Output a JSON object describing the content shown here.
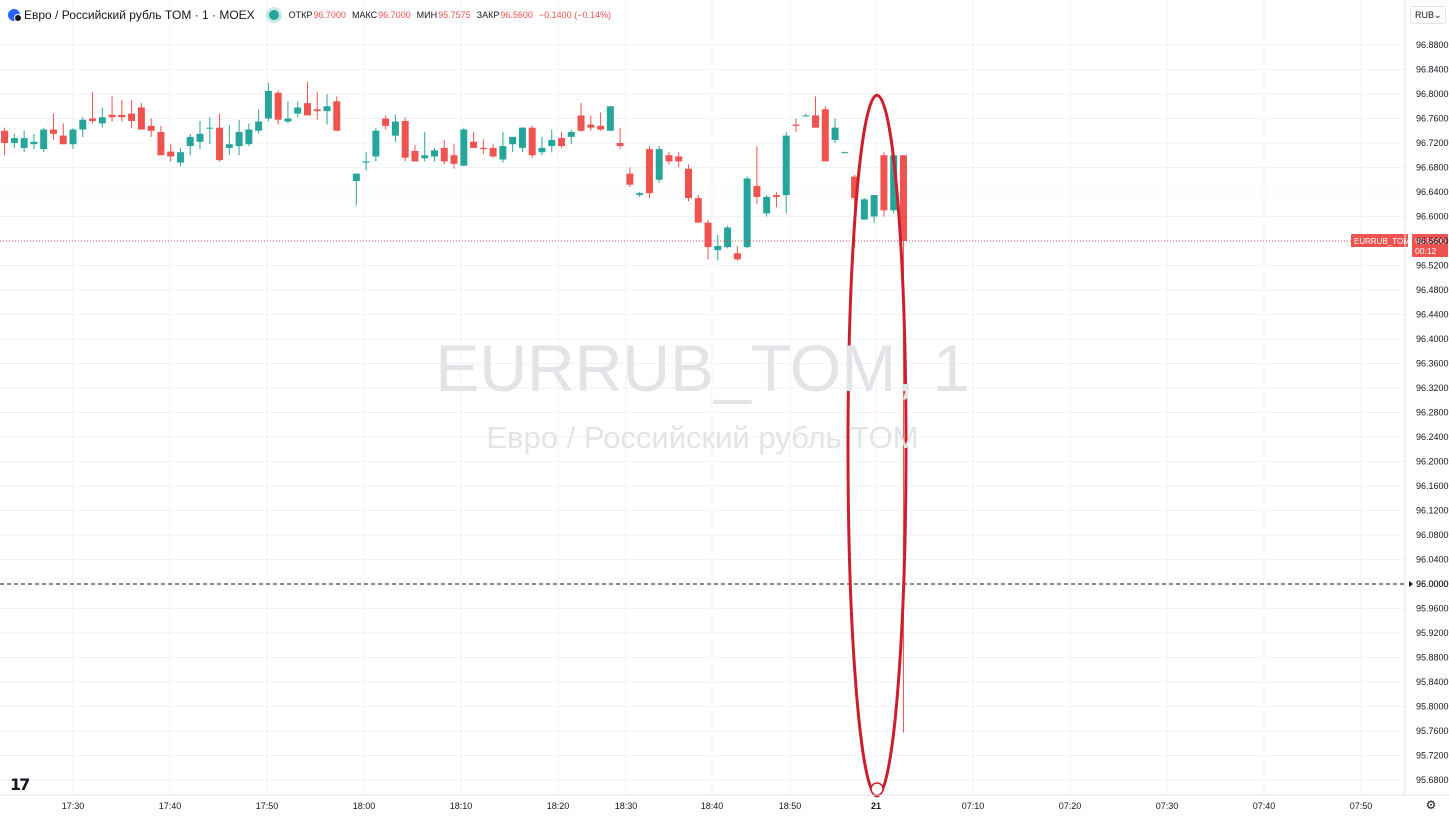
{
  "header": {
    "symbol_title": "Евро / Российский рубль TOM · 1 · MOEX",
    "ohlc": [
      {
        "label": "ОТКР",
        "value": "96.7000"
      },
      {
        "label": "МАКС",
        "value": "96.7000"
      },
      {
        "label": "МИН",
        "value": "95.7575"
      },
      {
        "label": "ЗАКР",
        "value": "96.5600"
      },
      {
        "label": "",
        "value": "−0.1400 (−0.14%)"
      }
    ],
    "currency": "RUB"
  },
  "watermark": {
    "line1": "EURRUB_TOM, 1",
    "line2": "Евро / Российский рубль TOM"
  },
  "colors": {
    "up": "#26a69a",
    "down": "#ef5350",
    "highlight": "#cc1f2d",
    "grid": "#f0f3fa",
    "axis_text": "#131722"
  },
  "price_label": {
    "symbol": "EURRUB_TOM",
    "price": "96.5600",
    "countdown": "00:12"
  },
  "hline": {
    "price": "96.0000",
    "value": 96.0
  },
  "icons": {
    "logo": "tradingview-logo",
    "settings": "gear-icon",
    "symbol": "symbol-icon",
    "currency_dropdown": "chevron-down-icon"
  },
  "chart_data": {
    "type": "candlestick",
    "ylim": [
      95.66,
      96.9
    ],
    "y_ticks": [
      "96.8800",
      "96.8400",
      "96.8000",
      "96.7600",
      "96.7200",
      "96.6800",
      "96.6400",
      "96.6000",
      "96.5600",
      "96.5200",
      "96.4800",
      "96.4400",
      "96.4000",
      "96.3600",
      "96.3200",
      "96.2800",
      "96.2400",
      "96.2000",
      "96.1600",
      "96.1200",
      "96.0800",
      "96.0400",
      "96.0000",
      "95.9600",
      "95.9200",
      "95.8800",
      "95.8400",
      "95.8000",
      "95.7600",
      "95.7200",
      "95.6800"
    ],
    "x_ticks": [
      "17:30",
      "17:40",
      "17:50",
      "18:00",
      "18:10",
      "18:20",
      "18:30",
      "18:40",
      "18:50",
      "21",
      "07:10",
      "07:20",
      "07:30",
      "07:40",
      "07:50"
    ],
    "last_price": 96.56,
    "highlighted_candle": {
      "open": 96.7,
      "high": 96.7,
      "low": 95.7575,
      "close": 96.56
    },
    "candles": [
      {
        "t": "17:23",
        "o": 96.74,
        "h": 96.745,
        "l": 96.7,
        "c": 96.72
      },
      {
        "t": "17:24",
        "o": 96.72,
        "h": 96.735,
        "l": 96.712,
        "c": 96.728
      },
      {
        "t": "17:25",
        "o": 96.712,
        "h": 96.74,
        "l": 96.705,
        "c": 96.728
      },
      {
        "t": "17:26",
        "o": 96.718,
        "h": 96.735,
        "l": 96.71,
        "c": 96.722
      },
      {
        "t": "17:27",
        "o": 96.71,
        "h": 96.745,
        "l": 96.705,
        "c": 96.742
      },
      {
        "t": "17:28",
        "o": 96.742,
        "h": 96.768,
        "l": 96.725,
        "c": 96.735
      },
      {
        "t": "17:29",
        "o": 96.732,
        "h": 96.752,
        "l": 96.718,
        "c": 96.718
      },
      {
        "t": "17:30",
        "o": 96.718,
        "h": 96.745,
        "l": 96.71,
        "c": 96.742
      },
      {
        "t": "17:31",
        "o": 96.742,
        "h": 96.762,
        "l": 96.73,
        "c": 96.758
      },
      {
        "t": "17:32",
        "o": 96.76,
        "h": 96.803,
        "l": 96.752,
        "c": 96.756
      },
      {
        "t": "17:33",
        "o": 96.752,
        "h": 96.778,
        "l": 96.745,
        "c": 96.762
      },
      {
        "t": "17:34",
        "o": 96.766,
        "h": 96.796,
        "l": 96.755,
        "c": 96.762
      },
      {
        "t": "17:35",
        "o": 96.766,
        "h": 96.79,
        "l": 96.755,
        "c": 96.762
      },
      {
        "t": "17:36",
        "o": 96.768,
        "h": 96.79,
        "l": 96.744,
        "c": 96.756
      },
      {
        "t": "17:37",
        "o": 96.778,
        "h": 96.785,
        "l": 96.744,
        "c": 96.742
      },
      {
        "t": "17:38",
        "o": 96.748,
        "h": 96.76,
        "l": 96.73,
        "c": 96.74
      },
      {
        "t": "17:39",
        "o": 96.738,
        "h": 96.748,
        "l": 96.7,
        "c": 96.7
      },
      {
        "t": "17:40",
        "o": 96.706,
        "h": 96.718,
        "l": 96.69,
        "c": 96.698
      },
      {
        "t": "17:41",
        "o": 96.688,
        "h": 96.712,
        "l": 96.682,
        "c": 96.705
      },
      {
        "t": "17:42",
        "o": 96.715,
        "h": 96.735,
        "l": 96.7,
        "c": 96.73
      },
      {
        "t": "17:43",
        "o": 96.722,
        "h": 96.756,
        "l": 96.71,
        "c": 96.735
      },
      {
        "t": "17:44",
        "o": 96.745,
        "h": 96.762,
        "l": 96.718,
        "c": 96.745
      },
      {
        "t": "17:45",
        "o": 96.745,
        "h": 96.768,
        "l": 96.69,
        "c": 96.692
      },
      {
        "t": "17:46",
        "o": 96.712,
        "h": 96.75,
        "l": 96.7,
        "c": 96.718
      },
      {
        "t": "17:47",
        "o": 96.715,
        "h": 96.758,
        "l": 96.7,
        "c": 96.738
      },
      {
        "t": "17:48",
        "o": 96.718,
        "h": 96.752,
        "l": 96.715,
        "c": 96.742
      },
      {
        "t": "17:49",
        "o": 96.74,
        "h": 96.775,
        "l": 96.735,
        "c": 96.755
      },
      {
        "t": "17:50",
        "o": 96.76,
        "h": 96.818,
        "l": 96.755,
        "c": 96.805
      },
      {
        "t": "17:51",
        "o": 96.802,
        "h": 96.806,
        "l": 96.75,
        "c": 96.758
      },
      {
        "t": "17:52",
        "o": 96.755,
        "h": 96.788,
        "l": 96.752,
        "c": 96.76
      },
      {
        "t": "17:53",
        "o": 96.768,
        "h": 96.788,
        "l": 96.762,
        "c": 96.778
      },
      {
        "t": "17:54",
        "o": 96.785,
        "h": 96.82,
        "l": 96.765,
        "c": 96.765
      },
      {
        "t": "17:55",
        "o": 96.775,
        "h": 96.803,
        "l": 96.758,
        "c": 96.772
      },
      {
        "t": "17:56",
        "o": 96.772,
        "h": 96.8,
        "l": 96.75,
        "c": 96.78
      },
      {
        "t": "17:57",
        "o": 96.788,
        "h": 96.796,
        "l": 96.74,
        "c": 96.74
      },
      {
        "t": "17:59",
        "o": 96.658,
        "h": 96.67,
        "l": 96.618,
        "c": 96.67
      },
      {
        "t": "18:00",
        "o": 96.688,
        "h": 96.705,
        "l": 96.675,
        "c": 96.69
      },
      {
        "t": "18:01",
        "o": 96.698,
        "h": 96.745,
        "l": 96.69,
        "c": 96.74
      },
      {
        "t": "18:02",
        "o": 96.76,
        "h": 96.765,
        "l": 96.742,
        "c": 96.748
      },
      {
        "t": "18:03",
        "o": 96.732,
        "h": 96.766,
        "l": 96.722,
        "c": 96.755
      },
      {
        "t": "18:04",
        "o": 96.756,
        "h": 96.762,
        "l": 96.69,
        "c": 96.696
      },
      {
        "t": "18:05",
        "o": 96.707,
        "h": 96.716,
        "l": 96.692,
        "c": 96.69
      },
      {
        "t": "18:06",
        "o": 96.695,
        "h": 96.738,
        "l": 96.69,
        "c": 96.7
      },
      {
        "t": "18:07",
        "o": 96.698,
        "h": 96.712,
        "l": 96.69,
        "c": 96.708
      },
      {
        "t": "18:08",
        "o": 96.712,
        "h": 96.725,
        "l": 96.685,
        "c": 96.69
      },
      {
        "t": "18:09",
        "o": 96.7,
        "h": 96.718,
        "l": 96.678,
        "c": 96.686
      },
      {
        "t": "18:10",
        "o": 96.683,
        "h": 96.745,
        "l": 96.682,
        "c": 96.742
      },
      {
        "t": "18:11",
        "o": 96.722,
        "h": 96.738,
        "l": 96.712,
        "c": 96.712
      },
      {
        "t": "18:12",
        "o": 96.712,
        "h": 96.726,
        "l": 96.702,
        "c": 96.71
      },
      {
        "t": "18:13",
        "o": 96.712,
        "h": 96.718,
        "l": 96.696,
        "c": 96.698
      },
      {
        "t": "18:14",
        "o": 96.693,
        "h": 96.738,
        "l": 96.688,
        "c": 96.715
      },
      {
        "t": "18:15",
        "o": 96.718,
        "h": 96.73,
        "l": 96.705,
        "c": 96.73
      },
      {
        "t": "18:16",
        "o": 96.712,
        "h": 96.746,
        "l": 96.705,
        "c": 96.745
      },
      {
        "t": "18:17",
        "o": 96.745,
        "h": 96.748,
        "l": 96.696,
        "c": 96.7
      },
      {
        "t": "18:18",
        "o": 96.705,
        "h": 96.73,
        "l": 96.7,
        "c": 96.712
      },
      {
        "t": "18:19",
        "o": 96.715,
        "h": 96.742,
        "l": 96.705,
        "c": 96.725
      },
      {
        "t": "18:20",
        "o": 96.728,
        "h": 96.738,
        "l": 96.712,
        "c": 96.715
      },
      {
        "t": "18:21",
        "o": 96.73,
        "h": 96.742,
        "l": 96.718,
        "c": 96.738
      },
      {
        "t": "18:22",
        "o": 96.765,
        "h": 96.785,
        "l": 96.738,
        "c": 96.74
      },
      {
        "t": "18:23",
        "o": 96.75,
        "h": 96.765,
        "l": 96.74,
        "c": 96.745
      },
      {
        "t": "18:24",
        "o": 96.748,
        "h": 96.77,
        "l": 96.74,
        "c": 96.742
      },
      {
        "t": "18:25",
        "o": 96.74,
        "h": 96.78,
        "l": 96.74,
        "c": 96.78
      },
      {
        "t": "18:26",
        "o": 96.72,
        "h": 96.745,
        "l": 96.71,
        "c": 96.715
      },
      {
        "t": "18:27",
        "o": 96.67,
        "h": 96.68,
        "l": 96.648,
        "c": 96.652
      },
      {
        "t": "18:28",
        "o": 96.635,
        "h": 96.64,
        "l": 96.632,
        "c": 96.638
      },
      {
        "t": "18:29",
        "o": 96.71,
        "h": 96.715,
        "l": 96.63,
        "c": 96.638
      },
      {
        "t": "18:30",
        "o": 96.66,
        "h": 96.715,
        "l": 96.655,
        "c": 96.71
      },
      {
        "t": "18:31",
        "o": 96.7,
        "h": 96.705,
        "l": 96.685,
        "c": 96.69
      },
      {
        "t": "18:32",
        "o": 96.698,
        "h": 96.705,
        "l": 96.68,
        "c": 96.69
      },
      {
        "t": "18:33",
        "o": 96.678,
        "h": 96.685,
        "l": 96.625,
        "c": 96.63
      },
      {
        "t": "18:34",
        "o": 96.63,
        "h": 96.635,
        "l": 96.59,
        "c": 96.59
      },
      {
        "t": "18:35",
        "o": 96.59,
        "h": 96.595,
        "l": 96.53,
        "c": 96.55
      },
      {
        "t": "18:36",
        "o": 96.545,
        "h": 96.57,
        "l": 96.528,
        "c": 96.552
      },
      {
        "t": "18:37",
        "o": 96.55,
        "h": 96.585,
        "l": 96.548,
        "c": 96.582
      },
      {
        "t": "18:38",
        "o": 96.54,
        "h": 96.552,
        "l": 96.528,
        "c": 96.53
      },
      {
        "t": "18:39",
        "o": 96.55,
        "h": 96.665,
        "l": 96.548,
        "c": 96.662
      },
      {
        "t": "18:40",
        "o": 96.65,
        "h": 96.715,
        "l": 96.62,
        "c": 96.632
      },
      {
        "t": "18:41",
        "o": 96.605,
        "h": 96.635,
        "l": 96.6,
        "c": 96.632
      },
      {
        "t": "18:42",
        "o": 96.635,
        "h": 96.64,
        "l": 96.615,
        "c": 96.632
      },
      {
        "t": "18:43",
        "o": 96.635,
        "h": 96.738,
        "l": 96.605,
        "c": 96.732
      },
      {
        "t": "18:44",
        "o": 96.75,
        "h": 96.76,
        "l": 96.738,
        "c": 96.748
      },
      {
        "t": "18:45",
        "o": 96.765,
        "h": 96.768,
        "l": 96.763,
        "c": 96.765
      },
      {
        "t": "18:46",
        "o": 96.765,
        "h": 96.796,
        "l": 96.745,
        "c": 96.745
      },
      {
        "t": "18:47",
        "o": 96.775,
        "h": 96.78,
        "l": 96.69,
        "c": 96.69
      },
      {
        "t": "18:48",
        "o": 96.725,
        "h": 96.76,
        "l": 96.72,
        "c": 96.745
      },
      {
        "t": "18:49",
        "o": 96.705,
        "h": 96.706,
        "l": 96.704,
        "c": 96.705
      },
      {
        "t": "18:50",
        "o": 96.665,
        "h": 96.668,
        "l": 96.55,
        "c": 96.63
      },
      {
        "t": "18:51",
        "o": 96.595,
        "h": 96.63,
        "l": 96.595,
        "c": 96.628
      },
      {
        "t": "18:52",
        "o": 96.6,
        "h": 96.635,
        "l": 96.59,
        "c": 96.635
      },
      {
        "t": "18:53",
        "o": 96.7,
        "h": 96.705,
        "l": 96.6,
        "c": 96.61
      },
      {
        "t": "18:54",
        "o": 96.61,
        "h": 96.7,
        "l": 96.605,
        "c": 96.7
      },
      {
        "t": "18:55",
        "o": 96.7,
        "h": 96.7,
        "l": 95.7575,
        "c": 96.56
      }
    ]
  }
}
